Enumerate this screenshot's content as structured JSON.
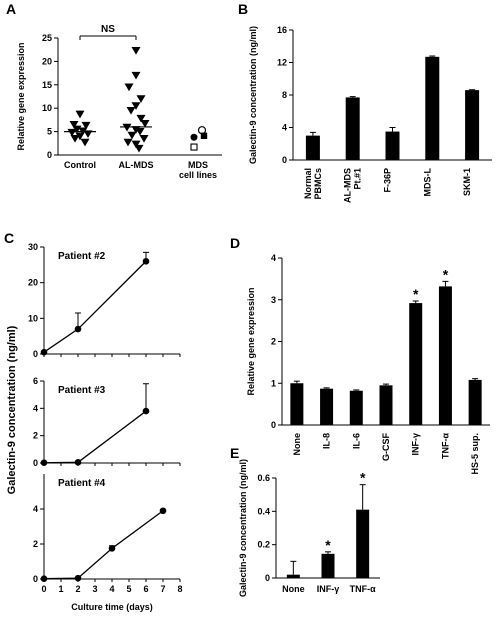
{
  "chart_data": [
    {
      "panel": "A",
      "type": "scatter",
      "ylabel": "Relative gene expression",
      "ylim": [
        0,
        25
      ],
      "yticks": [
        0,
        5,
        10,
        15,
        20,
        25
      ],
      "categories": [
        "Control",
        "AL-MDS",
        "MDS\ncell lines"
      ],
      "annotation": "NS",
      "groups": [
        {
          "category": "Control",
          "marker": "triangle-down",
          "values": [
            8.7,
            6.5,
            6.3,
            5.5,
            5.1,
            4.8,
            4.5,
            4.0,
            3.5,
            2.7
          ],
          "median": 5.0
        },
        {
          "category": "AL-MDS",
          "marker": "triangle-down",
          "values": [
            22.3,
            17.0,
            14.5,
            12.0,
            10.5,
            9.5,
            7.8,
            6.7,
            5.9,
            5.4,
            5.0,
            4.2,
            3.5,
            2.7,
            2.3,
            1.4
          ],
          "median": 6.0
        },
        {
          "category": "MDS\ncell lines",
          "points": [
            {
              "marker": "circle-open",
              "value": 5.3
            },
            {
              "marker": "circle-filled",
              "value": 3.8
            },
            {
              "marker": "square-filled",
              "value": 4.1
            },
            {
              "marker": "square-open",
              "value": 1.7
            }
          ]
        }
      ]
    },
    {
      "panel": "B",
      "type": "bar",
      "ylabel": "Galectin-9 concentration (ng/ml)",
      "ylim": [
        0,
        16
      ],
      "yticks": [
        0,
        4,
        8,
        12,
        16
      ],
      "categories": [
        "Normal\nPBMCs",
        "AL-MDS\nPt.#1",
        "F-36P",
        "MDS-L",
        "SKM-1"
      ],
      "values": [
        3.0,
        7.7,
        3.5,
        12.7,
        8.6
      ],
      "errors": [
        0.4,
        0.1,
        0.5,
        0.1,
        0.05
      ]
    },
    {
      "panel": "C",
      "type": "line",
      "ylabel": "Galectin-9 concentration (ng/ml)",
      "xlabel": "Culture time (days)",
      "xlim": [
        0,
        8
      ],
      "xticks": [
        0,
        1,
        2,
        3,
        4,
        5,
        6,
        7,
        8
      ],
      "subplots": [
        {
          "title": "Patient #2",
          "ylim": [
            0,
            30
          ],
          "yticks": [
            0,
            10,
            20,
            30
          ],
          "x": [
            0,
            2,
            6
          ],
          "y": [
            0.5,
            7.0,
            26.0
          ],
          "errors": [
            0,
            4.5,
            2.5
          ]
        },
        {
          "title": "Patient #3",
          "ylim": [
            0,
            6
          ],
          "yticks": [
            0,
            2,
            4,
            6
          ],
          "x": [
            0,
            2,
            6
          ],
          "y": [
            0.02,
            0.05,
            3.8
          ],
          "errors": [
            0,
            0,
            2.0
          ]
        },
        {
          "title": "Patient #4",
          "ylim": [
            0,
            6
          ],
          "yticks": [
            0,
            2,
            4
          ],
          "x": [
            0,
            2,
            4,
            7
          ],
          "y": [
            0.02,
            0.05,
            1.75,
            3.9
          ],
          "errors": [
            0,
            0,
            0.15,
            0
          ]
        }
      ]
    },
    {
      "panel": "D",
      "type": "bar",
      "ylabel": "Relative gene expression",
      "ylim": [
        0,
        4
      ],
      "yticks": [
        0,
        1,
        2,
        3,
        4
      ],
      "categories": [
        "None",
        "IL-8",
        "IL-6",
        "G-CSF",
        "INF-γ",
        "TNF-α",
        "HS-5 sup."
      ],
      "values": [
        1.0,
        0.87,
        0.82,
        0.95,
        2.92,
        3.32,
        1.08
      ],
      "errors": [
        0.05,
        0.02,
        0.02,
        0.03,
        0.05,
        0.12,
        0.03
      ],
      "significant": [
        false,
        false,
        false,
        false,
        true,
        true,
        false
      ]
    },
    {
      "panel": "E",
      "type": "bar",
      "ylabel": "Galectin-9 concentration (ng/ml)",
      "ylim": [
        0,
        0.6
      ],
      "yticks": [
        0,
        0.2,
        0.4,
        0.6
      ],
      "categories": [
        "None",
        "INF-γ",
        "TNF-α"
      ],
      "values": [
        0.02,
        0.145,
        0.41
      ],
      "errors": [
        0.08,
        0.012,
        0.15
      ],
      "significant": [
        false,
        true,
        true
      ]
    }
  ]
}
